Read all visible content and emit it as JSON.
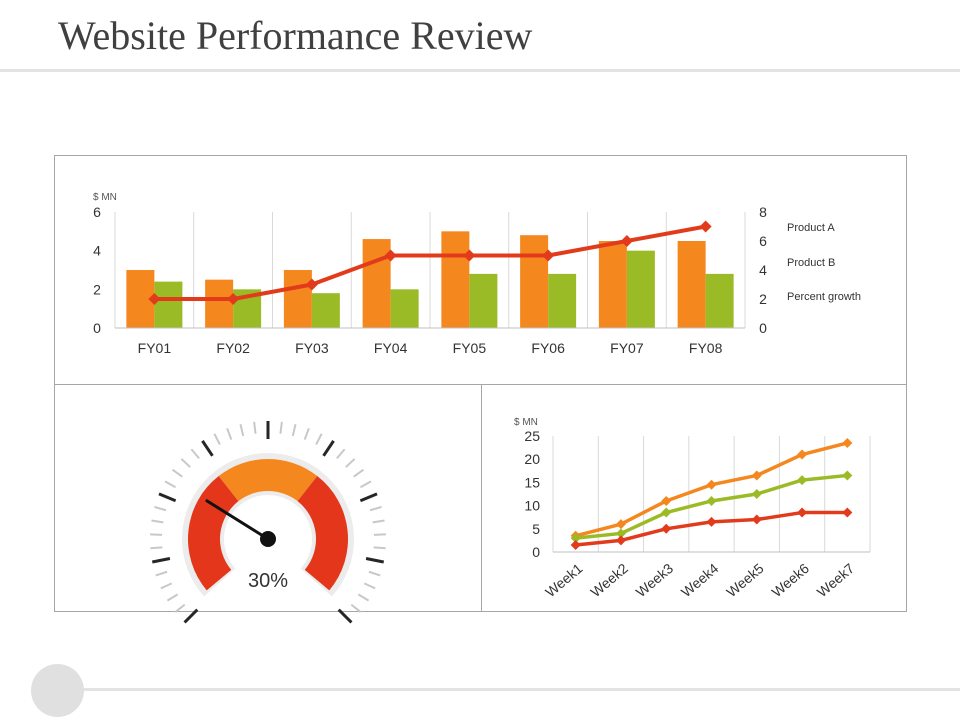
{
  "page": {
    "title": "Website Performance Review"
  },
  "chart_data": [
    {
      "type": "bar",
      "categories": [
        "FY01",
        "FY02",
        "FY03",
        "FY04",
        "FY05",
        "FY06",
        "FY07",
        "FY08"
      ],
      "series": [
        {
          "name": "Product A",
          "kind": "bar",
          "color": "#f5871f",
          "values": [
            3,
            2.5,
            3,
            4.6,
            5,
            4.8,
            4.5,
            4.5
          ]
        },
        {
          "name": "Product B",
          "kind": "bar",
          "color": "#9bbb26",
          "values": [
            2.4,
            2,
            1.8,
            2,
            2.8,
            2.8,
            4,
            2.8
          ]
        },
        {
          "name": "Percent growth",
          "kind": "line",
          "axis": "right",
          "color": "#e23b1c",
          "values": [
            2,
            2,
            3,
            5,
            5,
            5,
            6,
            7
          ]
        }
      ],
      "ylabel": "$ MN",
      "ylim": [
        0,
        6
      ],
      "yticks": [
        "0",
        "2",
        "4",
        "6"
      ],
      "y2lim": [
        0,
        8
      ],
      "y2ticks": [
        "0",
        "2",
        "4",
        "6",
        "8"
      ],
      "grid": "vertical",
      "legend": "right"
    },
    {
      "type": "gauge",
      "value": 30,
      "value_label": "30%",
      "colors": {
        "low": "#e3361b",
        "mid": "#f5871f",
        "high": "#e3361b",
        "needle": "#111111"
      }
    },
    {
      "type": "line",
      "categories": [
        "Week1",
        "Week2",
        "Week3",
        "Week4",
        "Week5",
        "Week6",
        "Week7"
      ],
      "series": [
        {
          "color": "#f5871f",
          "values": [
            3.5,
            6,
            11,
            14.5,
            16.5,
            21,
            23.5
          ]
        },
        {
          "color": "#9bbb26",
          "values": [
            3,
            4,
            8.5,
            11,
            12.5,
            15.5,
            16.5
          ]
        },
        {
          "color": "#e23b1c",
          "values": [
            1.5,
            2.5,
            5,
            6.5,
            7,
            8.5,
            8.5
          ]
        }
      ],
      "ylabel": "$ MN",
      "ylim": [
        0,
        25
      ],
      "yticks": [
        "0",
        "5",
        "10",
        "15",
        "20",
        "25"
      ],
      "grid": "vertical"
    }
  ]
}
